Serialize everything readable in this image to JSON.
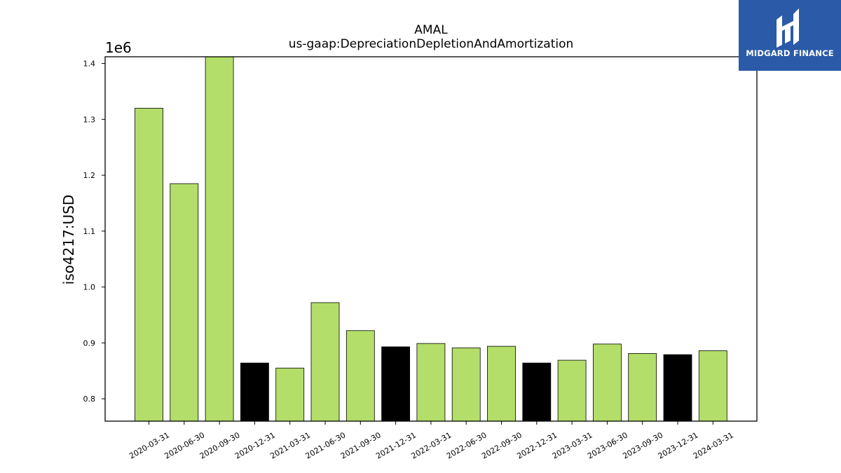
{
  "chart_data": {
    "type": "bar",
    "title": "AMAL",
    "subtitle": "us-gaap:DepreciationDepletionAndAmortization",
    "ylabel": "iso4217:USD",
    "y_offset_label": "1e6",
    "y_scale": 1000000,
    "ylim": [
      760000,
      1412000
    ],
    "yticks": [
      0.8,
      0.9,
      1.0,
      1.1,
      1.2,
      1.3,
      1.4
    ],
    "ytick_labels": [
      "0.8",
      "0.9",
      "1.0",
      "1.1",
      "1.2",
      "1.3",
      "1.4"
    ],
    "categories": [
      "2020-03-31",
      "2020-06-30",
      "2020-09-30",
      "2020-12-31",
      "2021-03-31",
      "2021-06-30",
      "2021-09-30",
      "2021-12-31",
      "2022-03-31",
      "2022-06-30",
      "2022-09-30",
      "2022-12-31",
      "2023-03-31",
      "2023-06-30",
      "2023-09-30",
      "2023-12-31",
      "2024-03-31"
    ],
    "values": [
      1320000,
      1185000,
      1415000,
      864000,
      855000,
      972000,
      922000,
      893000,
      899000,
      891000,
      894000,
      864000,
      869000,
      898000,
      881000,
      879000,
      886000
    ],
    "bar_colors": [
      "#b3de69",
      "#b3de69",
      "#b3de69",
      "#000000",
      "#b3de69",
      "#b3de69",
      "#b3de69",
      "#000000",
      "#b3de69",
      "#b3de69",
      "#b3de69",
      "#000000",
      "#b3de69",
      "#b3de69",
      "#b3de69",
      "#000000",
      "#b3de69"
    ],
    "grid": false,
    "legend": "none"
  },
  "logo": {
    "text": "MIDGARD FINANCE",
    "bg_color": "#2a5aa8",
    "icon": "midgard-logo-icon"
  }
}
